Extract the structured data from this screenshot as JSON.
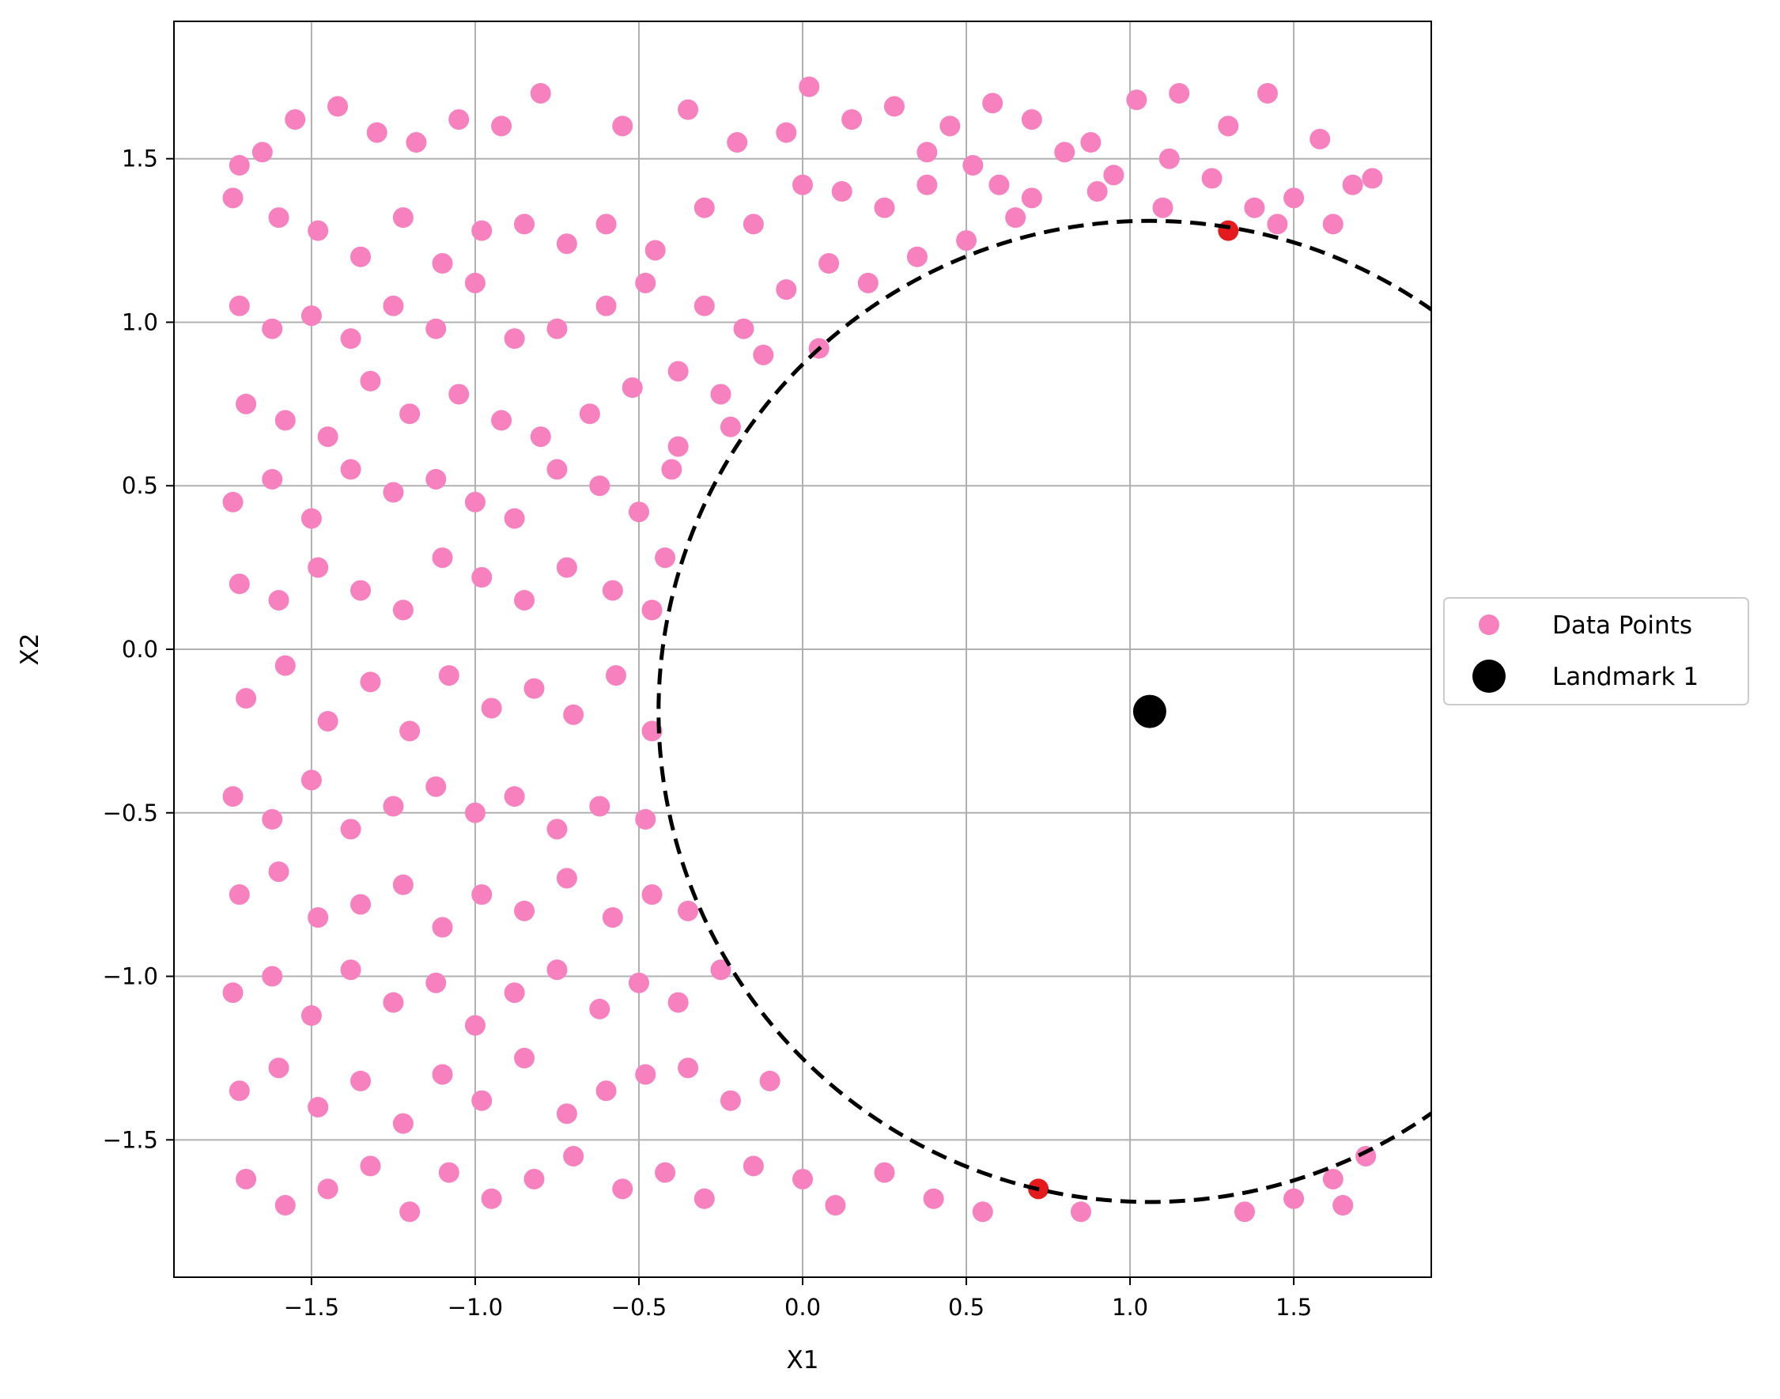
{
  "chart_data": {
    "type": "scatter",
    "title": "",
    "xlabel": "X1",
    "ylabel": "X2",
    "xlim": [
      -1.92,
      1.92
    ],
    "ylim": [
      -1.92,
      1.92
    ],
    "grid": true,
    "legend_placement": "outside-right",
    "x_ticks": [
      -1.5,
      -1.0,
      -0.5,
      0.0,
      0.5,
      1.0,
      1.5
    ],
    "y_ticks": [
      -1.5,
      -1.0,
      -0.5,
      0.0,
      0.5,
      1.0,
      1.5
    ],
    "x_tick_labels": [
      "−1.5",
      "−1.0",
      "−0.5",
      "0.0",
      "0.5",
      "1.0",
      "1.5"
    ],
    "y_tick_labels": [
      "−1.5",
      "−1.0",
      "−0.5",
      "0.0",
      "0.5",
      "1.0",
      "1.5"
    ],
    "landmark": {
      "name": "Landmark 1",
      "x": 1.06,
      "y": -0.19,
      "color": "#000000"
    },
    "circle": {
      "center_x": 1.06,
      "center_y": -0.19,
      "radius": 1.5,
      "style": "dashed",
      "color": "#000000"
    },
    "highlight_color": "#e41a1c",
    "series": [
      {
        "name": "Data Points",
        "color": "#f781bf",
        "points": [
          [
            -1.72,
            1.48
          ],
          [
            -1.65,
            1.52
          ],
          [
            -1.55,
            1.62
          ],
          [
            -1.42,
            1.66
          ],
          [
            -1.3,
            1.58
          ],
          [
            -1.18,
            1.55
          ],
          [
            -1.05,
            1.62
          ],
          [
            -0.92,
            1.6
          ],
          [
            -0.8,
            1.7
          ],
          [
            -0.55,
            1.6
          ],
          [
            -0.35,
            1.65
          ],
          [
            -0.2,
            1.55
          ],
          [
            -0.05,
            1.58
          ],
          [
            0.02,
            1.72
          ],
          [
            0.15,
            1.62
          ],
          [
            0.28,
            1.66
          ],
          [
            0.45,
            1.6
          ],
          [
            0.58,
            1.67
          ],
          [
            0.7,
            1.62
          ],
          [
            0.88,
            1.55
          ],
          [
            1.02,
            1.68
          ],
          [
            1.15,
            1.7
          ],
          [
            1.3,
            1.6
          ],
          [
            1.42,
            1.7
          ],
          [
            1.58,
            1.56
          ],
          [
            1.68,
            1.42
          ],
          [
            -1.74,
            1.38
          ],
          [
            -1.6,
            1.32
          ],
          [
            -1.48,
            1.28
          ],
          [
            -1.35,
            1.2
          ],
          [
            -1.22,
            1.32
          ],
          [
            -1.1,
            1.18
          ],
          [
            -0.98,
            1.28
          ],
          [
            -0.85,
            1.3
          ],
          [
            -0.72,
            1.24
          ],
          [
            -0.6,
            1.3
          ],
          [
            -0.45,
            1.22
          ],
          [
            -0.3,
            1.35
          ],
          [
            -0.15,
            1.3
          ],
          [
            0.0,
            1.42
          ],
          [
            0.12,
            1.4
          ],
          [
            0.25,
            1.35
          ],
          [
            0.38,
            1.42
          ],
          [
            0.52,
            1.48
          ],
          [
            0.65,
            1.32
          ],
          [
            0.8,
            1.52
          ],
          [
            0.95,
            1.45
          ],
          [
            1.12,
            1.5
          ],
          [
            1.25,
            1.44
          ],
          [
            1.38,
            1.35
          ],
          [
            1.5,
            1.38
          ],
          [
            1.62,
            1.3
          ],
          [
            1.74,
            1.44
          ],
          [
            -1.72,
            1.05
          ],
          [
            -1.62,
            0.98
          ],
          [
            -1.5,
            1.02
          ],
          [
            -1.38,
            0.95
          ],
          [
            -1.25,
            1.05
          ],
          [
            -1.12,
            0.98
          ],
          [
            -1.0,
            1.12
          ],
          [
            -0.88,
            0.95
          ],
          [
            -0.75,
            0.98
          ],
          [
            -0.6,
            1.05
          ],
          [
            -0.48,
            1.12
          ],
          [
            -0.3,
            1.05
          ],
          [
            -0.18,
            0.98
          ],
          [
            -0.05,
            1.1
          ],
          [
            0.08,
            1.18
          ],
          [
            0.2,
            1.12
          ],
          [
            0.35,
            1.2
          ],
          [
            0.5,
            1.25
          ],
          [
            -1.7,
            0.75
          ],
          [
            -1.58,
            0.7
          ],
          [
            -1.45,
            0.65
          ],
          [
            -1.32,
            0.82
          ],
          [
            -1.2,
            0.72
          ],
          [
            -1.05,
            0.78
          ],
          [
            -0.92,
            0.7
          ],
          [
            -0.8,
            0.65
          ],
          [
            -0.65,
            0.72
          ],
          [
            -0.52,
            0.8
          ],
          [
            -0.38,
            0.85
          ],
          [
            -0.25,
            0.78
          ],
          [
            -0.12,
            0.9
          ],
          [
            0.05,
            0.92
          ],
          [
            -1.74,
            0.45
          ],
          [
            -1.62,
            0.52
          ],
          [
            -1.5,
            0.4
          ],
          [
            -1.38,
            0.55
          ],
          [
            -1.25,
            0.48
          ],
          [
            -1.12,
            0.52
          ],
          [
            -1.0,
            0.45
          ],
          [
            -0.88,
            0.4
          ],
          [
            -0.75,
            0.55
          ],
          [
            -0.62,
            0.5
          ],
          [
            -0.5,
            0.42
          ],
          [
            -0.4,
            0.55
          ],
          [
            -1.72,
            0.2
          ],
          [
            -1.6,
            0.15
          ],
          [
            -1.48,
            0.25
          ],
          [
            -1.35,
            0.18
          ],
          [
            -1.22,
            0.12
          ],
          [
            -1.1,
            0.28
          ],
          [
            -0.98,
            0.22
          ],
          [
            -0.85,
            0.15
          ],
          [
            -0.72,
            0.25
          ],
          [
            -0.58,
            0.18
          ],
          [
            -0.46,
            0.12
          ],
          [
            -1.7,
            -0.15
          ],
          [
            -1.58,
            -0.05
          ],
          [
            -1.45,
            -0.22
          ],
          [
            -1.32,
            -0.1
          ],
          [
            -1.2,
            -0.25
          ],
          [
            -1.08,
            -0.08
          ],
          [
            -0.95,
            -0.18
          ],
          [
            -0.82,
            -0.12
          ],
          [
            -0.7,
            -0.2
          ],
          [
            -0.57,
            -0.08
          ],
          [
            -0.46,
            -0.25
          ],
          [
            -1.74,
            -0.45
          ],
          [
            -1.62,
            -0.52
          ],
          [
            -1.5,
            -0.4
          ],
          [
            -1.38,
            -0.55
          ],
          [
            -1.25,
            -0.48
          ],
          [
            -1.12,
            -0.42
          ],
          [
            -1.0,
            -0.5
          ],
          [
            -0.88,
            -0.45
          ],
          [
            -0.75,
            -0.55
          ],
          [
            -0.62,
            -0.48
          ],
          [
            -0.48,
            -0.52
          ],
          [
            -1.72,
            -0.75
          ],
          [
            -1.6,
            -0.68
          ],
          [
            -1.48,
            -0.82
          ],
          [
            -1.35,
            -0.78
          ],
          [
            -1.22,
            -0.72
          ],
          [
            -1.1,
            -0.85
          ],
          [
            -0.98,
            -0.75
          ],
          [
            -0.85,
            -0.8
          ],
          [
            -0.72,
            -0.7
          ],
          [
            -0.58,
            -0.82
          ],
          [
            -0.46,
            -0.75
          ],
          [
            -0.35,
            -0.8
          ],
          [
            -1.74,
            -1.05
          ],
          [
            -1.62,
            -1.0
          ],
          [
            -1.5,
            -1.12
          ],
          [
            -1.38,
            -0.98
          ],
          [
            -1.25,
            -1.08
          ],
          [
            -1.12,
            -1.02
          ],
          [
            -1.0,
            -1.15
          ],
          [
            -0.88,
            -1.05
          ],
          [
            -0.75,
            -0.98
          ],
          [
            -0.62,
            -1.1
          ],
          [
            -0.5,
            -1.02
          ],
          [
            -0.38,
            -1.08
          ],
          [
            -0.25,
            -0.98
          ],
          [
            -1.72,
            -1.35
          ],
          [
            -1.6,
            -1.28
          ],
          [
            -1.48,
            -1.4
          ],
          [
            -1.35,
            -1.32
          ],
          [
            -1.22,
            -1.45
          ],
          [
            -1.1,
            -1.3
          ],
          [
            -0.98,
            -1.38
          ],
          [
            -0.85,
            -1.25
          ],
          [
            -0.72,
            -1.42
          ],
          [
            -0.6,
            -1.35
          ],
          [
            -0.48,
            -1.3
          ],
          [
            -0.35,
            -1.28
          ],
          [
            -0.22,
            -1.38
          ],
          [
            -0.1,
            -1.32
          ],
          [
            -1.7,
            -1.62
          ],
          [
            -1.58,
            -1.7
          ],
          [
            -1.45,
            -1.65
          ],
          [
            -1.32,
            -1.58
          ],
          [
            -1.2,
            -1.72
          ],
          [
            -1.08,
            -1.6
          ],
          [
            -0.95,
            -1.68
          ],
          [
            -0.82,
            -1.62
          ],
          [
            -0.7,
            -1.55
          ],
          [
            -0.55,
            -1.65
          ],
          [
            -0.42,
            -1.6
          ],
          [
            -0.3,
            -1.68
          ],
          [
            -0.15,
            -1.58
          ],
          [
            0.0,
            -1.62
          ],
          [
            0.1,
            -1.7
          ],
          [
            0.25,
            -1.6
          ],
          [
            0.4,
            -1.68
          ],
          [
            0.55,
            -1.72
          ],
          [
            0.72,
            -1.65
          ],
          [
            0.85,
            -1.72
          ],
          [
            1.35,
            -1.72
          ],
          [
            1.5,
            -1.68
          ],
          [
            1.65,
            -1.7
          ],
          [
            1.72,
            -1.55
          ],
          [
            1.62,
            -1.62
          ],
          [
            -0.42,
            0.28
          ],
          [
            -0.38,
            0.62
          ],
          [
            -0.22,
            0.68
          ],
          [
            0.38,
            1.52
          ],
          [
            0.6,
            1.42
          ],
          [
            0.7,
            1.38
          ],
          [
            0.9,
            1.4
          ],
          [
            1.1,
            1.35
          ],
          [
            1.3,
            1.28
          ],
          [
            1.45,
            1.3
          ]
        ]
      }
    ],
    "legend": [
      {
        "label": "Data Points",
        "marker": "circle",
        "color": "#f781bf"
      },
      {
        "label": "Landmark 1",
        "marker": "circle",
        "color": "#000000"
      }
    ]
  }
}
